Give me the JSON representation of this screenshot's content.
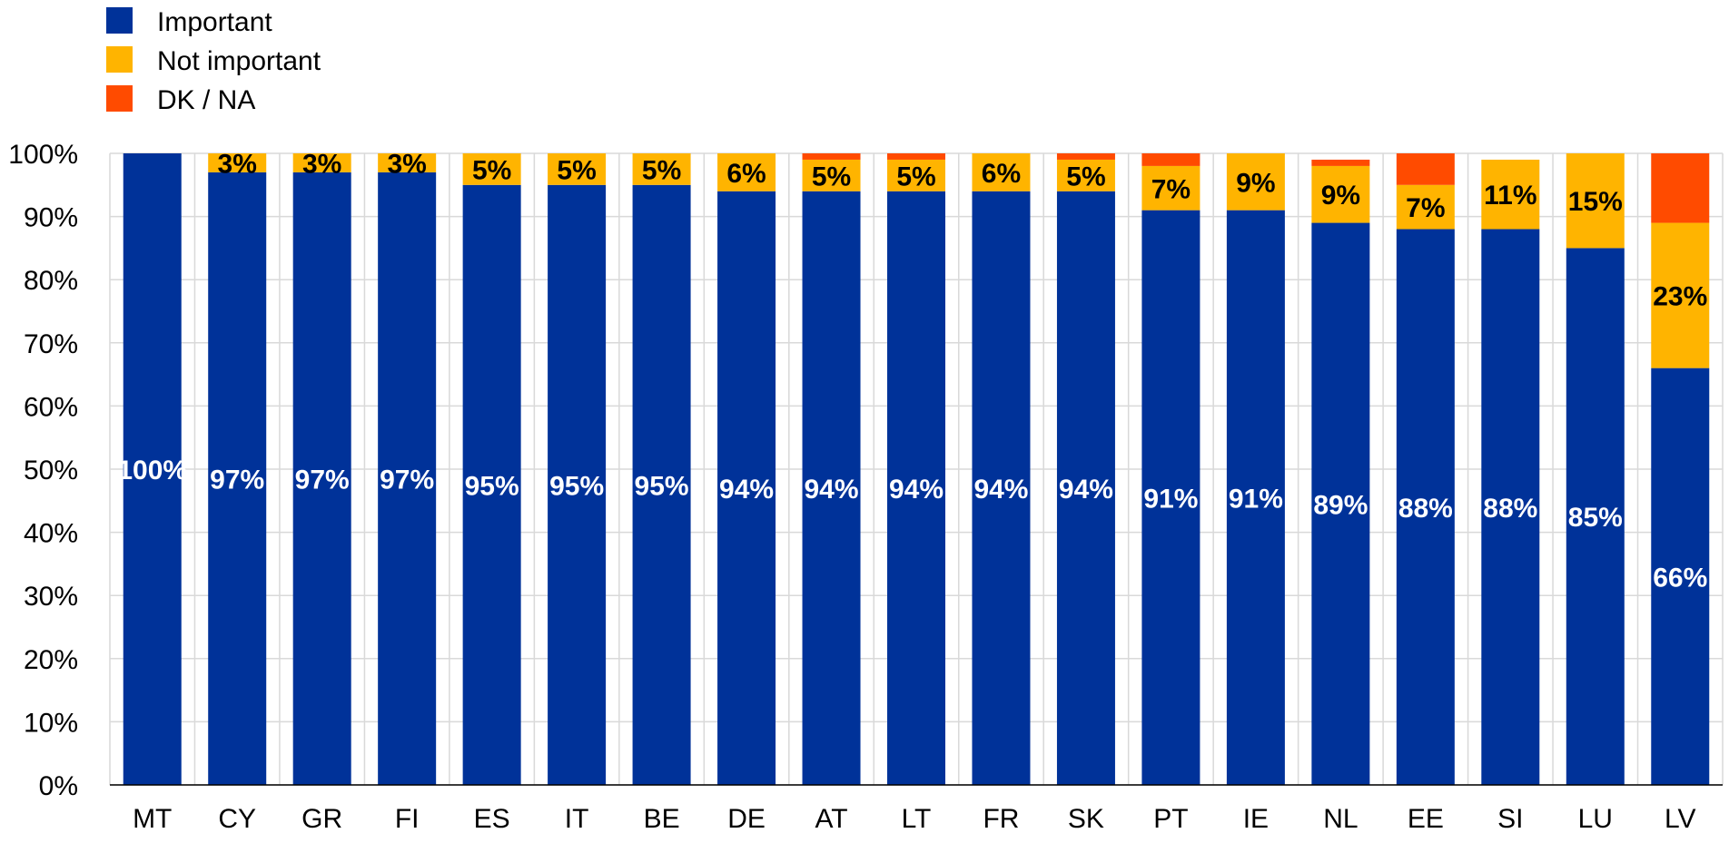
{
  "chart_data": {
    "type": "bar",
    "stacked": true,
    "categories": [
      "MT",
      "CY",
      "GR",
      "FI",
      "ES",
      "IT",
      "BE",
      "DE",
      "AT",
      "LT",
      "FR",
      "SK",
      "PT",
      "IE",
      "NL",
      "EE",
      "SI",
      "LU",
      "LV"
    ],
    "series": [
      {
        "name": "Important",
        "color": "#003299",
        "values": [
          100,
          97,
          97,
          97,
          95,
          95,
          95,
          94,
          94,
          94,
          94,
          94,
          91,
          91,
          89,
          88,
          88,
          85,
          66
        ],
        "labels": [
          "100%",
          "97%",
          "97%",
          "97%",
          "95%",
          "95%",
          "95%",
          "94%",
          "94%",
          "94%",
          "94%",
          "94%",
          "91%",
          "91%",
          "89%",
          "88%",
          "88%",
          "85%",
          "66%"
        ]
      },
      {
        "name": "Not important",
        "color": "#FFB400",
        "values": [
          0,
          3,
          3,
          3,
          5,
          5,
          5,
          6,
          5,
          5,
          6,
          5,
          7,
          9,
          9,
          7,
          11,
          15,
          23
        ],
        "labels": [
          "",
          "3%",
          "3%",
          "3%",
          "5%",
          "5%",
          "5%",
          "6%",
          "5%",
          "5%",
          "6%",
          "5%",
          "7%",
          "9%",
          "9%",
          "7%",
          "11%",
          "15%",
          "23%"
        ]
      },
      {
        "name": "DK / NA",
        "color": "#FF4B00",
        "values": [
          0,
          0,
          0,
          0,
          0,
          0,
          0,
          0,
          1,
          1,
          0,
          1,
          2,
          0,
          1,
          5,
          0,
          0,
          11
        ],
        "labels": [
          "",
          "",
          "",
          "",
          "",
          "",
          "",
          "",
          "",
          "",
          "",
          "",
          "",
          "",
          "",
          "",
          "",
          "",
          ""
        ]
      }
    ],
    "yaxis": {
      "min": 0,
      "max": 100,
      "ticks": [
        0,
        10,
        20,
        30,
        40,
        50,
        60,
        70,
        80,
        90,
        100
      ],
      "tick_labels": [
        "0%",
        "10%",
        "20%",
        "30%",
        "40%",
        "50%",
        "60%",
        "70%",
        "80%",
        "90%",
        "100%"
      ]
    },
    "grid": true,
    "legend": {
      "position": "top-left",
      "items": [
        {
          "label": "Important",
          "color": "#003299"
        },
        {
          "label": "Not important",
          "color": "#FFB400"
        },
        {
          "label": "DK / NA",
          "color": "#FF4B00"
        }
      ]
    },
    "title": "",
    "xlabel": "",
    "ylabel": ""
  }
}
